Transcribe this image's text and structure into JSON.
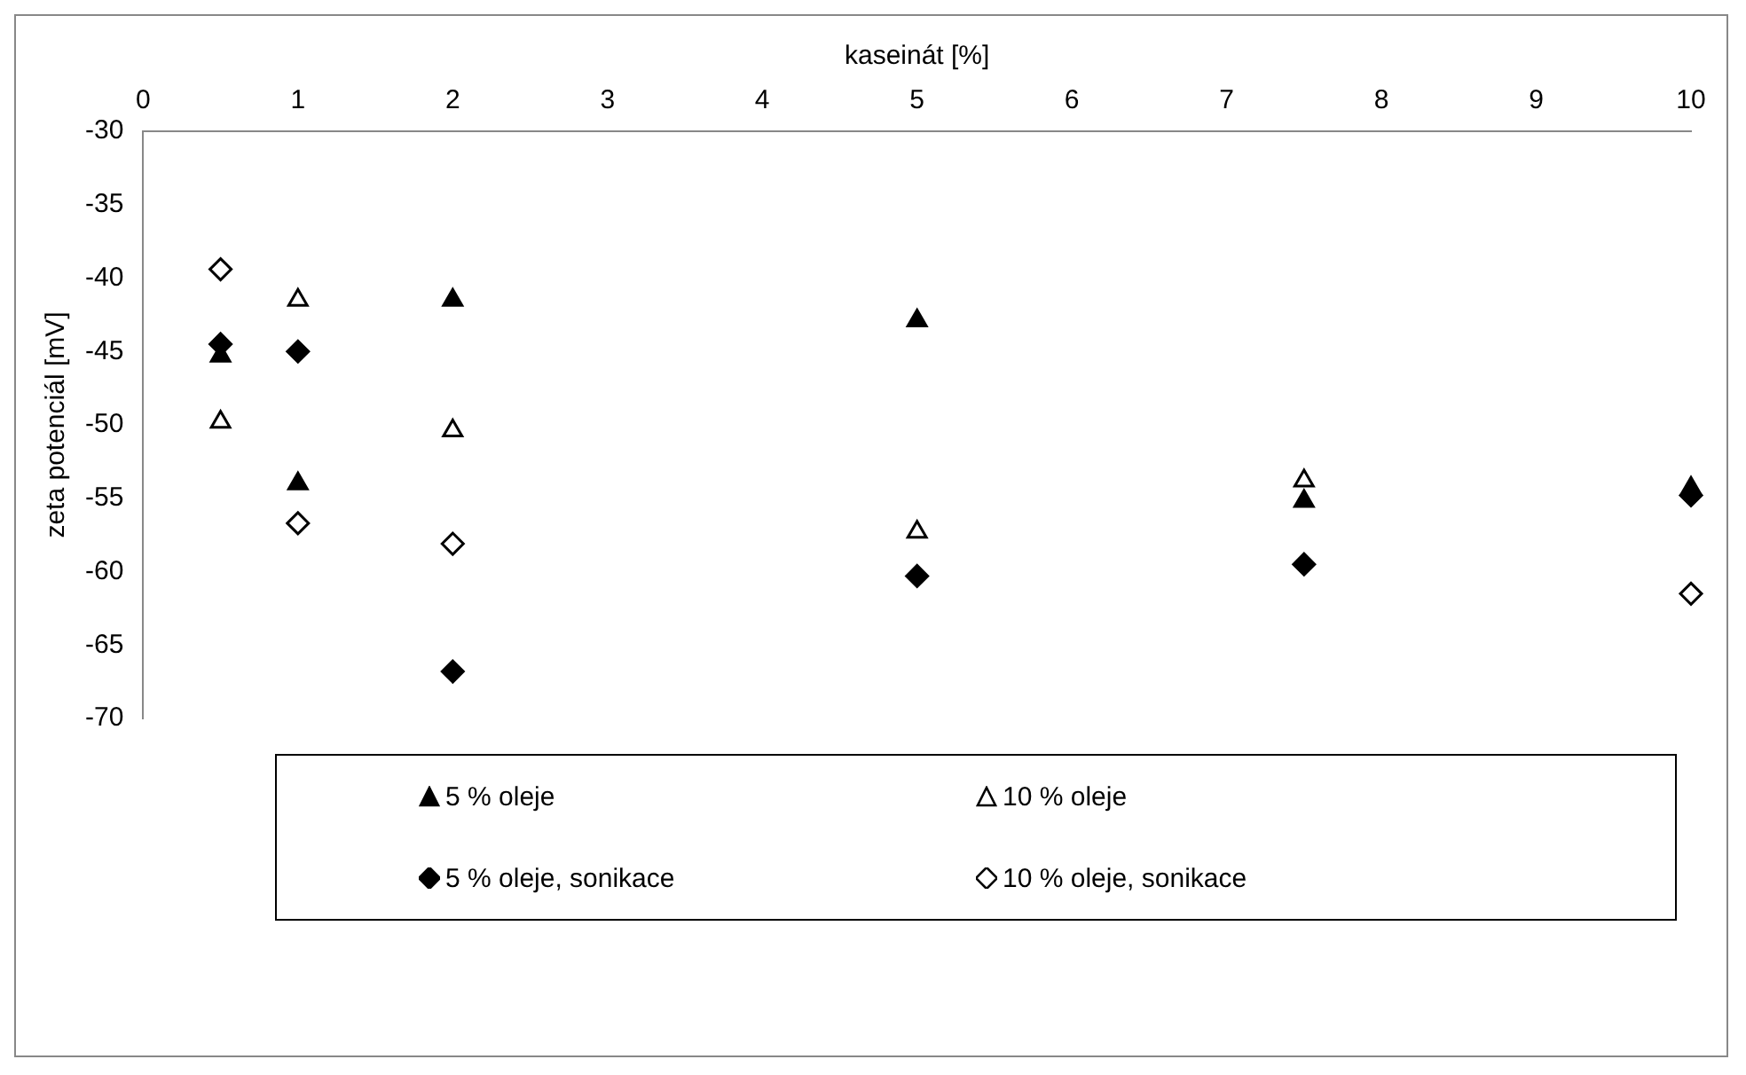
{
  "chart_data": {
    "type": "scatter",
    "xlabel": "kaseinát [%]",
    "ylabel": "zeta potenciál [mV]",
    "x": [
      0.5,
      1,
      2,
      5,
      7.5,
      10
    ],
    "xlim": [
      0,
      10
    ],
    "xticks": [
      0,
      1,
      2,
      3,
      4,
      5,
      6,
      7,
      8,
      9,
      10
    ],
    "ylim": [
      -70,
      -30
    ],
    "yticks": [
      -70,
      -65,
      -60,
      -55,
      -50,
      -45,
      -40,
      -35,
      -30
    ],
    "grid": false,
    "legend": "bottom",
    "series": [
      {
        "name": "5 % oleje",
        "color": "#000000",
        "marker": "triangle",
        "values": [
          -45.3,
          -54,
          -41.5,
          -42.9,
          -55.2,
          -54.3
        ]
      },
      {
        "name": "10 % oleje",
        "color": "#ffffff",
        "marker": "triangle",
        "values": [
          -49.8,
          -41.5,
          -50.4,
          -57.3,
          -53.8,
          null
        ]
      },
      {
        "name": "5 % oleje, sonikace",
        "color": "#000000",
        "marker": "diamond",
        "values": [
          -44.5,
          -45,
          -66.8,
          -60.3,
          -59.5,
          -54.8
        ]
      },
      {
        "name": "10 % oleje, sonikace",
        "color": "#ffffff",
        "marker": "diamond",
        "values": [
          -39.4,
          -56.7,
          -58.1,
          null,
          null,
          -61.5
        ]
      }
    ]
  }
}
